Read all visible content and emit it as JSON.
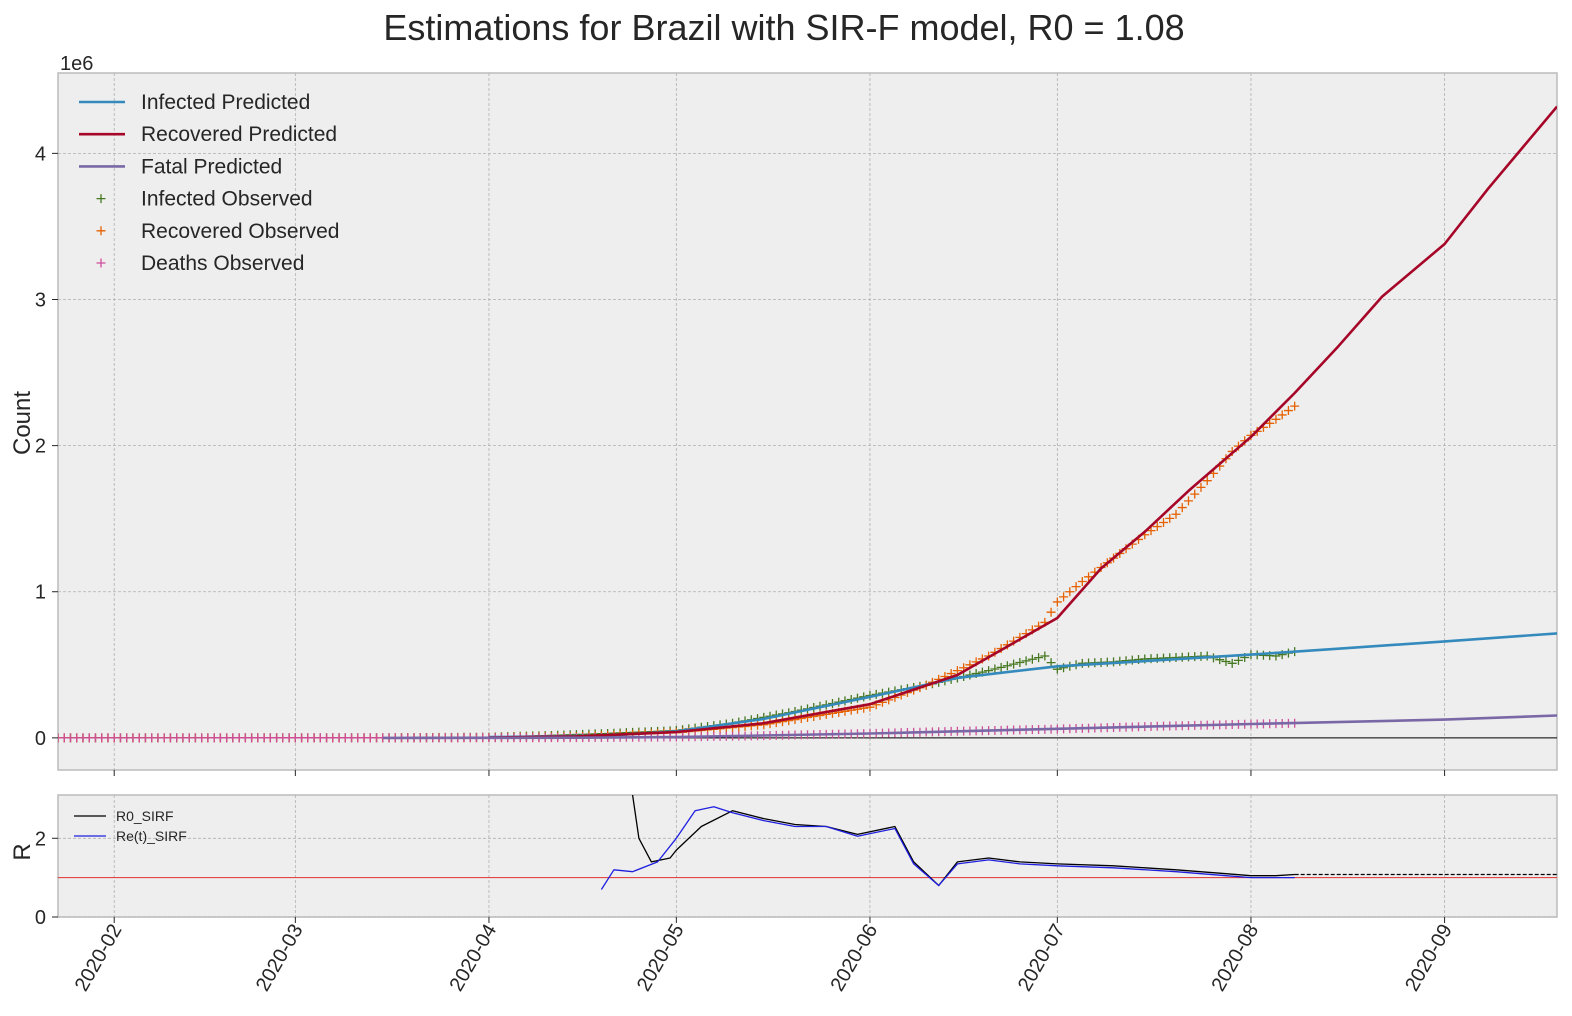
{
  "colors": {
    "infected_pred": "#348ABD",
    "recovered_pred": "#A60628",
    "fatal_pred": "#7A68A6",
    "infected_obs": "#467821",
    "recovered_obs": "#E66100",
    "deaths_obs": "#CF4F9A",
    "r0_line": "#000000",
    "rt_line": "#1F1FE0",
    "threshold": "#E03030",
    "panel_bg": "#EEEEEE"
  },
  "chart_data": [
    {
      "type": "line",
      "title": "Estimations for Brazil with SIR-F model, R0 = 1.08",
      "ylabel": "Count",
      "y_offset_label": "1e6",
      "xlim": [
        "2020-01-23",
        "2020-09-19"
      ],
      "ylim": [
        -220000,
        4550000
      ],
      "y_ticks": [
        0,
        1000000,
        2000000,
        3000000,
        4000000
      ],
      "y_tick_labels": [
        "0",
        "1",
        "2",
        "3",
        "4"
      ],
      "x_ticks": [
        "2020-02-01",
        "2020-03-01",
        "2020-04-01",
        "2020-05-01",
        "2020-06-01",
        "2020-07-01",
        "2020-08-01",
        "2020-09-01"
      ],
      "x_tick_labels": [
        "2020-02",
        "2020-03",
        "2020-04",
        "2020-05",
        "2020-06",
        "2020-07",
        "2020-08",
        "2020-09"
      ],
      "grid": true,
      "legend_position": "top-left",
      "series": [
        {
          "name": "Infected Predicted",
          "kind": "line",
          "color_key": "infected_pred",
          "x": [
            "2020-04-01",
            "2020-04-20",
            "2020-05-01",
            "2020-05-15",
            "2020-06-01",
            "2020-06-15",
            "2020-07-01",
            "2020-07-15",
            "2020-08-01",
            "2020-08-15",
            "2020-09-01",
            "2020-09-19"
          ],
          "y": [
            5000,
            15000,
            45000,
            130000,
            280000,
            410000,
            490000,
            525000,
            570000,
            610000,
            660000,
            715000
          ]
        },
        {
          "name": "Recovered Predicted",
          "kind": "line",
          "color_key": "recovered_pred",
          "x": [
            "2020-04-01",
            "2020-04-15",
            "2020-05-01",
            "2020-05-15",
            "2020-06-01",
            "2020-06-15",
            "2020-07-01",
            "2020-07-08",
            "2020-07-15",
            "2020-07-22",
            "2020-08-01",
            "2020-08-08",
            "2020-08-15",
            "2020-08-22",
            "2020-09-01",
            "2020-09-08",
            "2020-09-19"
          ],
          "y": [
            2000,
            10000,
            40000,
            100000,
            230000,
            430000,
            820000,
            1160000,
            1410000,
            1690000,
            2060000,
            2360000,
            2680000,
            3020000,
            3380000,
            3760000,
            4320000
          ]
        },
        {
          "name": "Fatal Predicted",
          "kind": "line",
          "color_key": "fatal_pred",
          "x": [
            "2020-03-15",
            "2020-04-15",
            "2020-05-01",
            "2020-06-01",
            "2020-07-01",
            "2020-08-01",
            "2020-09-01",
            "2020-09-19"
          ],
          "y": [
            0,
            1000,
            5000,
            30000,
            62000,
            95000,
            125000,
            153000
          ]
        },
        {
          "name": "Infected Observed",
          "kind": "scatter",
          "color_key": "infected_obs",
          "x": [
            "2020-01-23",
            "2020-03-15",
            "2020-04-01",
            "2020-04-10",
            "2020-04-20",
            "2020-05-01",
            "2020-05-10",
            "2020-05-20",
            "2020-06-01",
            "2020-06-10",
            "2020-06-20",
            "2020-06-29",
            "2020-07-01",
            "2020-07-05",
            "2020-07-10",
            "2020-07-15",
            "2020-07-20",
            "2020-07-25",
            "2020-07-29",
            "2020-08-01",
            "2020-08-05",
            "2020-08-08"
          ],
          "y": [
            0,
            500,
            5000,
            15000,
            30000,
            50000,
            100000,
            180000,
            290000,
            360000,
            460000,
            560000,
            470000,
            510000,
            520000,
            540000,
            550000,
            560000,
            510000,
            570000,
            560000,
            590000
          ]
        },
        {
          "name": "Recovered Observed",
          "kind": "scatter",
          "color_key": "recovered_obs",
          "x": [
            "2020-01-23",
            "2020-03-15",
            "2020-04-01",
            "2020-04-15",
            "2020-05-01",
            "2020-05-15",
            "2020-06-01",
            "2020-06-10",
            "2020-06-20",
            "2020-06-29",
            "2020-07-01",
            "2020-07-05",
            "2020-07-10",
            "2020-07-15",
            "2020-07-20",
            "2020-07-25",
            "2020-07-29",
            "2020-08-01",
            "2020-08-05",
            "2020-08-08"
          ],
          "y": [
            0,
            200,
            2000,
            8000,
            35000,
            90000,
            210000,
            360000,
            560000,
            790000,
            930000,
            1070000,
            1230000,
            1390000,
            1530000,
            1760000,
            1960000,
            2070000,
            2180000,
            2270000
          ]
        },
        {
          "name": "Deaths Observed",
          "kind": "scatter",
          "color_key": "deaths_obs",
          "x": [
            "2020-01-23",
            "2020-04-01",
            "2020-04-15",
            "2020-05-01",
            "2020-05-15",
            "2020-06-01",
            "2020-06-15",
            "2020-07-01",
            "2020-07-15",
            "2020-08-01",
            "2020-08-08"
          ],
          "y": [
            0,
            300,
            1500,
            6000,
            15000,
            30000,
            45000,
            60000,
            77000,
            94000,
            100000
          ]
        }
      ]
    },
    {
      "type": "line",
      "ylabel": "R",
      "xlim": [
        "2020-01-23",
        "2020-09-19"
      ],
      "ylim": [
        0,
        3.1
      ],
      "y_ticks": [
        0,
        2
      ],
      "y_tick_labels": [
        "0",
        "2"
      ],
      "threshold": 1,
      "grid": true,
      "legend_position": "top-left",
      "series": [
        {
          "name": "R0_SIRF",
          "color_key": "r0_line",
          "x": [
            "2020-04-24",
            "2020-04-25",
            "2020-04-27",
            "2020-04-30",
            "2020-05-01",
            "2020-05-05",
            "2020-05-10",
            "2020-05-15",
            "2020-05-20",
            "2020-05-25",
            "2020-05-30",
            "2020-06-05",
            "2020-06-08",
            "2020-06-12",
            "2020-06-15",
            "2020-06-20",
            "2020-06-25",
            "2020-07-01",
            "2020-07-10",
            "2020-07-20",
            "2020-07-28",
            "2020-08-01",
            "2020-08-05",
            "2020-08-08"
          ],
          "y": [
            3.1,
            2.0,
            1.4,
            1.5,
            1.7,
            2.3,
            2.7,
            2.5,
            2.35,
            2.3,
            2.1,
            2.3,
            1.4,
            0.8,
            1.4,
            1.5,
            1.4,
            1.35,
            1.3,
            1.2,
            1.1,
            1.05,
            1.05,
            1.08
          ]
        },
        {
          "name": "Re(t)_SIRF",
          "color_key": "rt_line",
          "x": [
            "2020-04-19",
            "2020-04-21",
            "2020-04-24",
            "2020-04-28",
            "2020-05-01",
            "2020-05-04",
            "2020-05-07",
            "2020-05-10",
            "2020-05-15",
            "2020-05-20",
            "2020-05-25",
            "2020-05-30",
            "2020-06-05",
            "2020-06-08",
            "2020-06-12",
            "2020-06-15",
            "2020-06-20",
            "2020-06-25",
            "2020-07-01",
            "2020-07-10",
            "2020-07-20",
            "2020-07-28",
            "2020-08-01",
            "2020-08-05",
            "2020-08-08"
          ],
          "y": [
            0.7,
            1.2,
            1.15,
            1.4,
            2.0,
            2.7,
            2.8,
            2.65,
            2.45,
            2.3,
            2.3,
            2.05,
            2.25,
            1.35,
            0.8,
            1.35,
            1.45,
            1.35,
            1.3,
            1.25,
            1.15,
            1.05,
            1.0,
            1.0,
            1.0
          ]
        },
        {
          "name": "R0_SIRF_future",
          "color_key": "r0_line",
          "dashed": true,
          "x": [
            "2020-08-08",
            "2020-09-19"
          ],
          "y": [
            1.08,
            1.08
          ]
        }
      ]
    }
  ]
}
